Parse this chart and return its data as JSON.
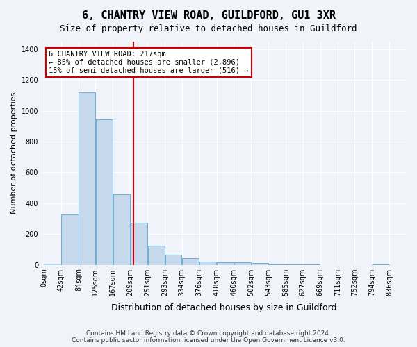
{
  "title": "6, CHANTRY VIEW ROAD, GUILDFORD, GU1 3XR",
  "subtitle": "Size of property relative to detached houses in Guildford",
  "xlabel": "Distribution of detached houses by size in Guildford",
  "ylabel": "Number of detached properties",
  "bar_color": "#c6d9ec",
  "bar_edgecolor": "#6baed6",
  "background_color": "#f0f4fa",
  "grid_color": "#ffffff",
  "vline_x": 217,
  "vline_color": "#cc0000",
  "annotation_text": "6 CHANTRY VIEW ROAD: 217sqm\n← 85% of detached houses are smaller (2,896)\n15% of semi-detached houses are larger (516) →",
  "annotation_box_color": "#cc0000",
  "footer": "Contains HM Land Registry data © Crown copyright and database right 2024.\nContains public sector information licensed under the Open Government Licence v3.0.",
  "bin_edges": [
    0,
    42,
    84,
    125,
    167,
    209,
    251,
    293,
    334,
    376,
    418,
    460,
    502,
    543,
    585,
    627,
    669,
    711,
    752,
    794,
    836
  ],
  "bin_labels": [
    "0sqm",
    "42sqm",
    "84sqm",
    "125sqm",
    "167sqm",
    "209sqm",
    "251sqm",
    "293sqm",
    "334sqm",
    "376sqm",
    "418sqm",
    "460sqm",
    "502sqm",
    "543sqm",
    "585sqm",
    "627sqm",
    "669sqm",
    "711sqm",
    "752sqm",
    "794sqm",
    "836sqm"
  ],
  "bar_heights": [
    5,
    325,
    1120,
    945,
    460,
    275,
    125,
    65,
    45,
    22,
    18,
    15,
    10,
    3,
    1,
    1,
    0,
    0,
    0,
    4
  ],
  "ylim": [
    0,
    1450
  ],
  "yticks": [
    0,
    200,
    400,
    600,
    800,
    1000,
    1200,
    1400
  ]
}
